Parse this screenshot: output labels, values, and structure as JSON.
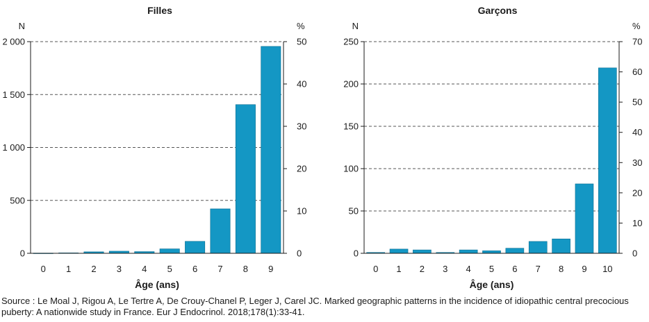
{
  "chart_data": [
    {
      "type": "bar",
      "title": "Filles",
      "xlabel": "Âge (ans)",
      "ylabel": "N",
      "ylabel_right": "%",
      "categories": [
        "0",
        "1",
        "2",
        "3",
        "4",
        "5",
        "6",
        "7",
        "8",
        "9"
      ],
      "values": [
        2,
        4,
        14,
        20,
        16,
        42,
        113,
        420,
        1405,
        1955
      ],
      "ylim": [
        0,
        2000
      ],
      "yticks": [
        0,
        500,
        1000,
        1500,
        2000
      ],
      "ytick_labels": [
        "0",
        "500",
        "1 000",
        "1 500",
        "2 000"
      ],
      "y2lim": [
        0,
        50
      ],
      "y2ticks": [
        0,
        10,
        20,
        30,
        40,
        50
      ],
      "y2tick_labels": [
        "0",
        "10",
        "20",
        "30",
        "40",
        "50"
      ],
      "grid": "horizontal dashed",
      "bar_color": "#1497c4"
    },
    {
      "type": "bar",
      "title": "Garçons",
      "xlabel": "Âge (ans)",
      "ylabel": "N",
      "ylabel_right": "%",
      "categories": [
        "0",
        "1",
        "2",
        "3",
        "4",
        "5",
        "6",
        "7",
        "8",
        "9",
        "10"
      ],
      "values": [
        1,
        5,
        4,
        1,
        4,
        3,
        6,
        14,
        17,
        82,
        219
      ],
      "ylim": [
        0,
        250
      ],
      "yticks": [
        0,
        50,
        100,
        150,
        200,
        250
      ],
      "ytick_labels": [
        "0",
        "50",
        "100",
        "150",
        "200",
        "250"
      ],
      "y2lim": [
        0,
        70
      ],
      "y2ticks": [
        0,
        10,
        20,
        30,
        40,
        50,
        60,
        70
      ],
      "y2tick_labels": [
        "0",
        "10",
        "20",
        "30",
        "40",
        "50",
        "60",
        "70"
      ],
      "grid": "horizontal dashed",
      "bar_color": "#1497c4"
    }
  ],
  "source": "Source : Le Moal J, Rigou A, Le Tertre A, De Crouy-Chanel P, Leger J, Carel JC. Marked geographic patterns in the incidence of idiopathic central precocious puberty: A nationwide study in France. Eur J Endocrinol. 2018;178(1):33-41."
}
